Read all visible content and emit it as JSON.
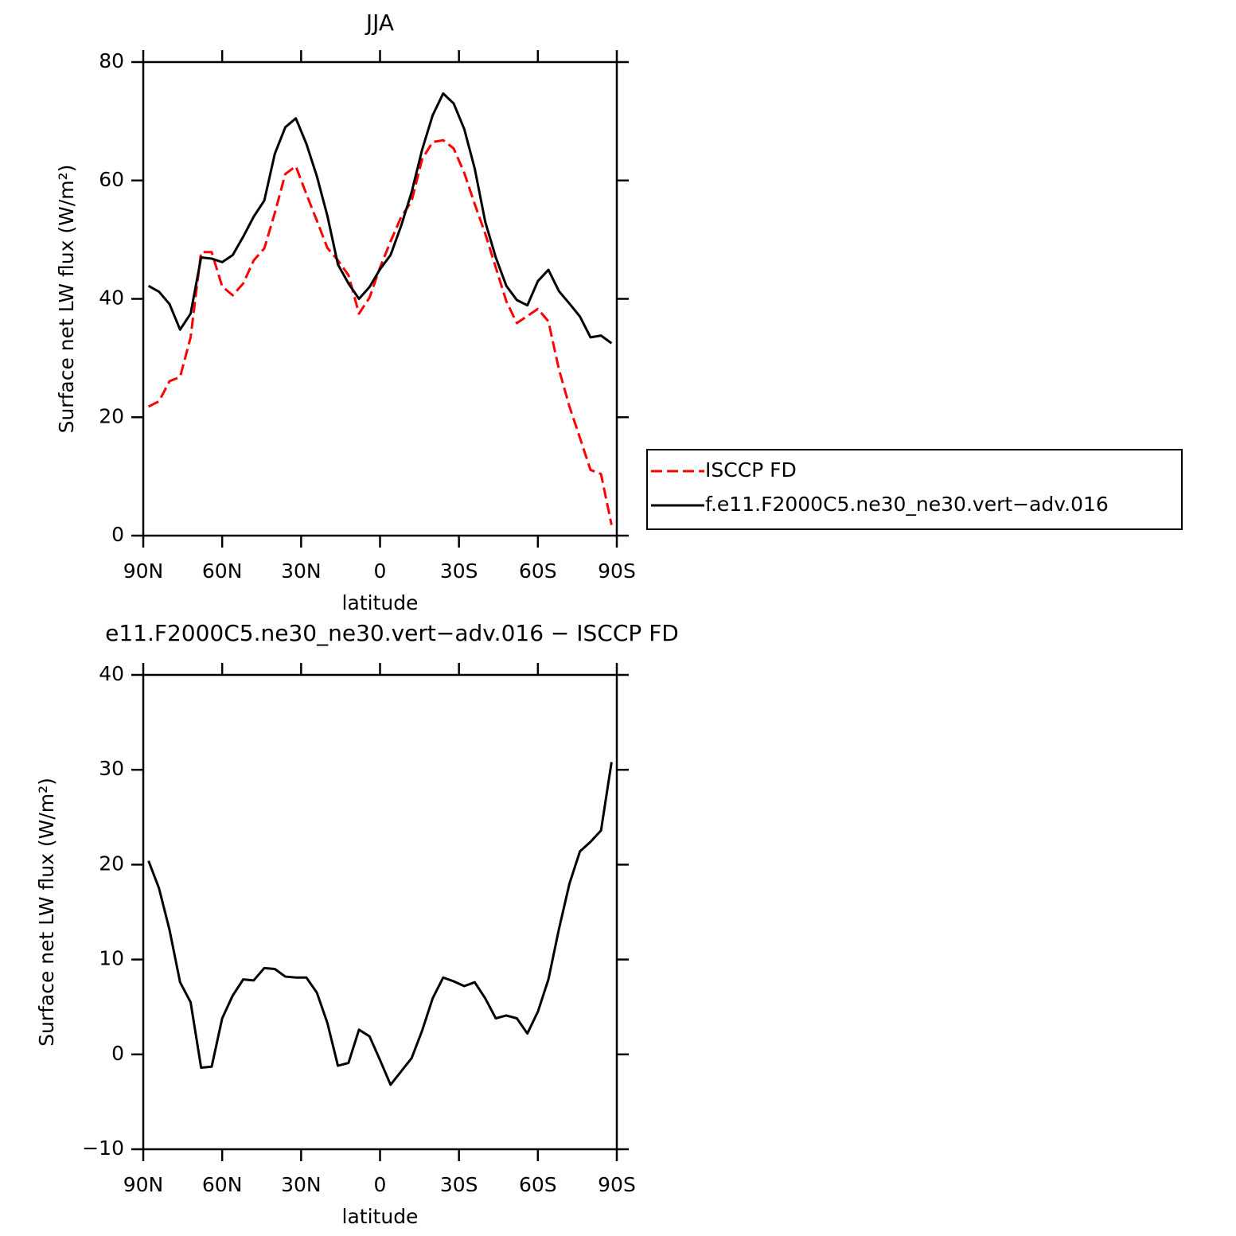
{
  "chart_data": [
    {
      "type": "line",
      "title": "JJA",
      "xlabel": "latitude",
      "ylabel": "Surface net LW flux (W/m²)",
      "x": [
        88,
        84,
        80,
        76,
        72,
        68,
        64,
        60,
        56,
        52,
        48,
        44,
        40,
        36,
        32,
        28,
        24,
        20,
        16,
        12,
        8,
        4,
        0,
        -4,
        -8,
        -12,
        -16,
        -20,
        -24,
        -28,
        -32,
        -36,
        -40,
        -44,
        -48,
        -52,
        -56,
        -60,
        -64,
        -68,
        -72,
        -76,
        -80,
        -84,
        -88
      ],
      "xlim": [
        90,
        -90
      ],
      "xticks": [
        {
          "value": 90,
          "label": "90N"
        },
        {
          "value": 60,
          "label": "60N"
        },
        {
          "value": 30,
          "label": "30N"
        },
        0,
        {
          "value": -30,
          "label": "30S"
        },
        {
          "value": -60,
          "label": "60S"
        },
        {
          "value": -90,
          "label": "90S"
        }
      ],
      "ylim": [
        0,
        80
      ],
      "yticks": [
        0,
        20,
        40,
        60,
        80
      ],
      "legend": "right",
      "series": [
        {
          "name": "ISCCP FD",
          "color": "#ff0000",
          "dash": "dashed",
          "values": [
            21.8,
            22.7,
            26.1,
            26.8,
            33.5,
            47.9,
            47.9,
            42.1,
            40.6,
            42.6,
            46.5,
            48.5,
            54.5,
            61.1,
            62.4,
            57.7,
            53.2,
            48.6,
            46.5,
            44.0,
            37.5,
            40.2,
            45.3,
            49.7,
            53.8,
            56.5,
            63.6,
            66.5,
            66.8,
            65.4,
            61.3,
            56.0,
            51.0,
            45.3,
            39.6,
            35.9,
            37.1,
            38.3,
            36.2,
            28.1,
            21.8,
            16.5,
            11.1,
            10.4,
            1.8
          ]
        },
        {
          "name": "f.e11.F2000C5.ne30_ne30.vert−adv.016",
          "color": "#000000",
          "dash": "solid",
          "values": [
            42.2,
            41.2,
            39.1,
            34.8,
            37.5,
            47.0,
            46.8,
            46.2,
            47.4,
            50.5,
            53.9,
            56.6,
            64.5,
            69.0,
            70.5,
            66.2,
            60.7,
            54.0,
            45.8,
            42.6,
            40.0,
            42.0,
            45.0,
            47.4,
            52.3,
            58.0,
            65.2,
            71.0,
            74.7,
            73.0,
            68.7,
            62.0,
            53.0,
            47.0,
            42.2,
            39.8,
            38.9,
            43.0,
            44.9,
            41.3,
            39.2,
            37.0,
            33.5,
            33.8,
            32.5
          ]
        }
      ]
    },
    {
      "type": "line",
      "title": "e11.F2000C5.ne30_ne30.vert−adv.016 − ISCCP FD",
      "xlabel": "latitude",
      "ylabel": "Surface net LW flux (W/m²)",
      "x": [
        88,
        84,
        80,
        76,
        72,
        68,
        64,
        60,
        56,
        52,
        48,
        44,
        40,
        36,
        32,
        28,
        24,
        20,
        16,
        12,
        8,
        4,
        0,
        -4,
        -8,
        -12,
        -16,
        -20,
        -24,
        -28,
        -32,
        -36,
        -40,
        -44,
        -48,
        -52,
        -56,
        -60,
        -64,
        -68,
        -72,
        -76,
        -80,
        -84,
        -88
      ],
      "xlim": [
        90,
        -90
      ],
      "xticks": [
        {
          "value": 90,
          "label": "90N"
        },
        {
          "value": 60,
          "label": "60N"
        },
        {
          "value": 30,
          "label": "30N"
        },
        0,
        {
          "value": -30,
          "label": "30S"
        },
        {
          "value": -60,
          "label": "60S"
        },
        {
          "value": -90,
          "label": "90S"
        }
      ],
      "ylim": [
        -10,
        40
      ],
      "yticks": [
        {
          "value": -10,
          "label": "−10"
        },
        0,
        10,
        20,
        30,
        40
      ],
      "series": [
        {
          "color": "#000000",
          "dash": "solid",
          "values": [
            20.4,
            17.5,
            13.1,
            7.6,
            5.5,
            -1.4,
            -1.3,
            3.8,
            6.2,
            7.9,
            7.8,
            9.1,
            9.0,
            8.2,
            8.1,
            8.1,
            6.5,
            3.3,
            -1.2,
            -0.9,
            2.6,
            1.9,
            -0.6,
            -3.2,
            -1.8,
            -0.4,
            2.5,
            5.9,
            8.1,
            7.7,
            7.2,
            7.6,
            5.9,
            3.8,
            4.1,
            3.8,
            2.2,
            4.5,
            7.9,
            13.2,
            18.0,
            21.4,
            22.4,
            23.6,
            30.8
          ]
        }
      ]
    }
  ]
}
